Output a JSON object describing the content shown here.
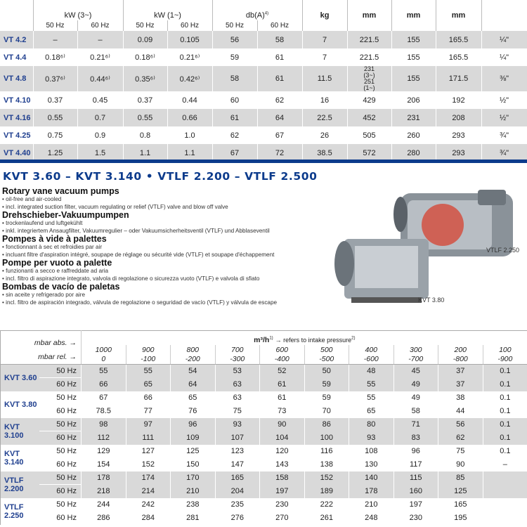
{
  "top_table": {
    "headers": {
      "kw3": "kW (3~)",
      "kw1": "kW (1~)",
      "db": "db(A)",
      "db_sup": "4)",
      "kg": "kg",
      "mm1": "mm",
      "mm2": "mm",
      "mm3": "mm",
      "hz50": "50 Hz",
      "hz60": "60 Hz"
    },
    "rows": [
      {
        "model": "VT 4.2",
        "v": [
          "–",
          "–",
          "0.09",
          "0.105",
          "56",
          "58",
          "7",
          "221.5",
          "155",
          "165.5",
          "¼\""
        ]
      },
      {
        "model": "VT 4.4",
        "v": [
          "0.18⁶⁾",
          "0.21⁶⁾",
          "0.18⁶⁾",
          "0.21⁶⁾",
          "59",
          "61",
          "7",
          "221.5",
          "155",
          "165.5",
          "¼\""
        ]
      },
      {
        "model": "VT 4.8",
        "v": [
          "0.37⁶⁾",
          "0.44⁶⁾",
          "0.35⁶⁾",
          "0.42⁶⁾",
          "58",
          "61",
          "11.5",
          "231 (3~) 251 (1~)",
          "155",
          "171.5",
          "⅜\""
        ]
      },
      {
        "model": "VT 4.10",
        "v": [
          "0.37",
          "0.45",
          "0.37",
          "0.44",
          "60",
          "62",
          "16",
          "429",
          "206",
          "192",
          "½\""
        ]
      },
      {
        "model": "VT 4.16",
        "v": [
          "0.55",
          "0.7",
          "0.55",
          "0.66",
          "61",
          "64",
          "22.5",
          "452",
          "231",
          "208",
          "½\""
        ]
      },
      {
        "model": "VT 4.25",
        "v": [
          "0.75",
          "0.9",
          "0.8",
          "1.0",
          "62",
          "67",
          "26",
          "505",
          "260",
          "293",
          "¾\""
        ]
      },
      {
        "model": "VT 4.40",
        "v": [
          "1.25",
          "1.5",
          "1.1",
          "1.1",
          "67",
          "72",
          "38.5",
          "572",
          "280",
          "293",
          "¾\""
        ]
      }
    ]
  },
  "section": {
    "title": "KVT 3.60 – KVT 3.140  •  VTLF 2.200 – VTLF 2.500",
    "langs": [
      {
        "h": "Rotary vane vacuum pumps",
        "b": [
          "• oil-free and air-cooled",
          "• incl. integrated suction filter, vacuum regulating or relief (VTLF) valve and blow off valve"
        ]
      },
      {
        "h": "Drehschieber-Vakuumpumpen",
        "b": [
          "• trockenlaufend und luftgekühlt",
          "• inkl. integriertem Ansaugfilter, Vakuumregulier – oder Vakuumsicherheitsventil (VTLF) und Abblaseventil"
        ]
      },
      {
        "h": "Pompes à vide à palettes",
        "b": [
          "• fonctionnant à sec et refroidies par air",
          "• incluant filtre d'aspiration intégré, soupape de réglage ou sécurité vide (VTLF) et soupape d'échappement"
        ]
      },
      {
        "h": "Pompe per vuoto a palette",
        "b": [
          "• funzionanti a secco e raffreddate ad aria",
          "• incl. filtro di aspirazione integrato, valvola di regolazione o sicurezza vuoto (VTLF) e valvola di sfiato"
        ]
      },
      {
        "h": "Bombas de vacío de paletas",
        "b": [
          "• sin aceite y refrigerado por aire",
          "• incl. filtro de aspiración integrado, válvula de regolazione o seguridad de vacío (VTLF) y válvula de escape"
        ]
      }
    ],
    "img_labels": {
      "a": "VTLF 2.250",
      "b": "KVT 3.80"
    }
  },
  "flow_table": {
    "unit": "m³/h",
    "unit_sup": "1)",
    "note": "→ refers to intake pressure",
    "note_sup": "2)",
    "abs_label": "mbar abs. →",
    "rel_label": "mbar rel. →",
    "abs": [
      "1000",
      "900",
      "800",
      "700",
      "600",
      "500",
      "400",
      "300",
      "200",
      "100"
    ],
    "rel": [
      "0",
      "-100",
      "-200",
      "-300",
      "-400",
      "-500",
      "-600",
      "-700",
      "-800",
      "-900"
    ],
    "hz50": "50 Hz",
    "hz60": "60 Hz",
    "models": [
      {
        "model": "KVT 3.60",
        "r50": [
          "55",
          "55",
          "54",
          "53",
          "52",
          "50",
          "48",
          "45",
          "37",
          "0.1"
        ],
        "r60": [
          "66",
          "65",
          "64",
          "63",
          "61",
          "59",
          "55",
          "49",
          "37",
          "0.1"
        ]
      },
      {
        "model": "KVT 3.80",
        "r50": [
          "67",
          "66",
          "65",
          "63",
          "61",
          "59",
          "55",
          "49",
          "38",
          "0.1"
        ],
        "r60": [
          "78.5",
          "77",
          "76",
          "75",
          "73",
          "70",
          "65",
          "58",
          "44",
          "0.1"
        ]
      },
      {
        "model": "KVT 3.100",
        "r50": [
          "98",
          "97",
          "96",
          "93",
          "90",
          "86",
          "80",
          "71",
          "56",
          "0.1"
        ],
        "r60": [
          "112",
          "111",
          "109",
          "107",
          "104",
          "100",
          "93",
          "83",
          "62",
          "0.1"
        ]
      },
      {
        "model": "KVT 3.140",
        "r50": [
          "129",
          "127",
          "125",
          "123",
          "120",
          "116",
          "108",
          "96",
          "75",
          "0.1"
        ],
        "r60": [
          "154",
          "152",
          "150",
          "147",
          "143",
          "138",
          "130",
          "117",
          "90",
          "–"
        ]
      },
      {
        "model": "VTLF 2.200",
        "r50": [
          "178",
          "174",
          "170",
          "165",
          "158",
          "152",
          "140",
          "115",
          "85",
          ""
        ],
        "r60": [
          "218",
          "214",
          "210",
          "204",
          "197",
          "189",
          "178",
          "160",
          "125",
          ""
        ]
      },
      {
        "model": "VTLF 2.250",
        "r50": [
          "244",
          "242",
          "238",
          "235",
          "230",
          "222",
          "210",
          "197",
          "165",
          ""
        ],
        "r60": [
          "286",
          "284",
          "281",
          "276",
          "270",
          "261",
          "248",
          "230",
          "195",
          ""
        ]
      }
    ]
  }
}
